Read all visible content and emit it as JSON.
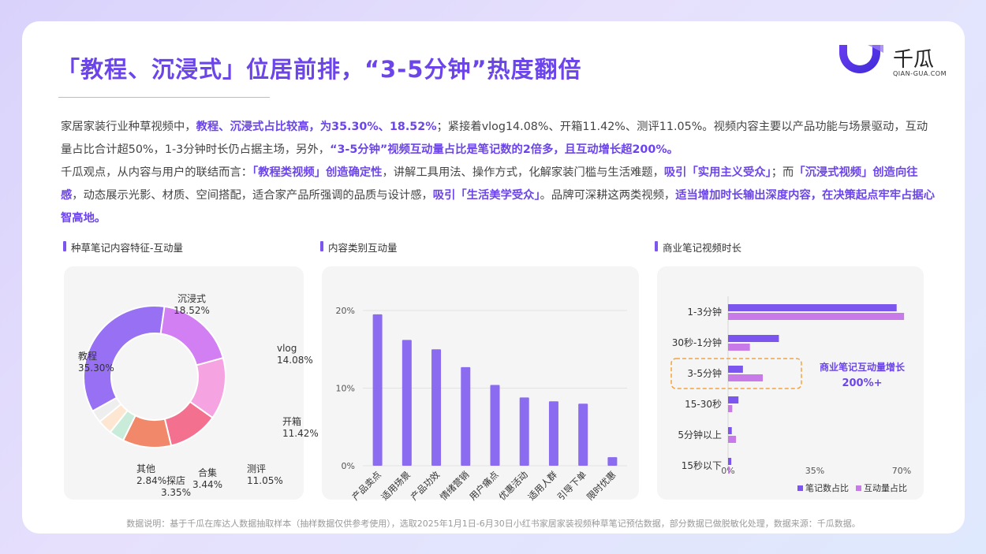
{
  "title": "「教程、沉浸式」位居前排，“3-5分钟”热度翻倍",
  "logo": {
    "name": "千瓜",
    "sub": "QIAN-GUA.COM"
  },
  "intro": {
    "p1": [
      {
        "t": "家居家装行业种草视频中，",
        "hl": false
      },
      {
        "t": "教程、沉浸式占比较高，为35.30%、18.52%",
        "hl": true
      },
      {
        "t": "；紧接着vlog14.08%、开箱11.42%、测评11.05%。视频内容主要以产品功能与场景驱动，互动量占比合计超50%，1-3分钟时长仍占据主场，另外，",
        "hl": false
      },
      {
        "t": "“3-5分钟”视频互动量占比是笔记数的2倍多，且互动增长超200%。",
        "hl": true
      }
    ],
    "p2": [
      {
        "t": "千瓜观点，从内容与用户的联结而言：",
        "hl": false
      },
      {
        "t": "「教程类视频」创造确定性",
        "hl": true
      },
      {
        "t": "，讲解工具用法、操作方式，化解家装门槛与生活难题，",
        "hl": false
      },
      {
        "t": "吸引「实用主义受众」",
        "hl": true
      },
      {
        "t": "；而",
        "hl": false
      },
      {
        "t": "「沉浸式视频」创造向往感",
        "hl": true
      },
      {
        "t": "，动态展示光影、材质、空间搭配，适合家产品所强调的品质与设计感，",
        "hl": false
      },
      {
        "t": "吸引「生活美学受众」",
        "hl": true
      },
      {
        "t": "。品牌可深耕这两类视频，",
        "hl": false
      },
      {
        "t": "适当增加时长输出深度内容，在决策起点牢牢占据心智高地。",
        "hl": true
      }
    ]
  },
  "sections": {
    "donut": "种草笔记内容特征-互动量",
    "bars": "内容类别互动量",
    "hbars": "商业笔记视频时长"
  },
  "footnote": "数据说明：基于千瓜在库达人数据抽取样本（抽样数据仅供参考使用），选取2025年1月1日-6月30日小红书家居家装视频种草笔记预估数据，部分数据已做脱敏化处理，数据来源：千瓜数据。",
  "colors": {
    "accent": "#6c45ea",
    "bar": "#8b6cf0",
    "hbar1": "#7c55ee",
    "hbar2": "#c77ae8",
    "highlight": "#f5a33c"
  },
  "chart_data": [
    {
      "type": "pie",
      "title": "种草笔记内容特征-互动量",
      "donut": true,
      "categories": [
        "教程",
        "沉浸式",
        "vlog",
        "开箱",
        "测评",
        "合集",
        "探店",
        "其他"
      ],
      "values": [
        35.3,
        18.52,
        14.08,
        11.42,
        11.05,
        3.44,
        3.35,
        2.84
      ],
      "labels": [
        "35.30%",
        "18.52%",
        "14.08%",
        "11.42%",
        "11.05%",
        "3.44%",
        "3.35%",
        "2.84%"
      ],
      "colors": [
        "#9770f3",
        "#d27ff3",
        "#f6a3e2",
        "#f3708e",
        "#f2886a",
        "#c8ecd9",
        "#fde7d3",
        "#eeeeee"
      ]
    },
    {
      "type": "bar",
      "title": "内容类别互动量",
      "categories": [
        "产品卖点",
        "适用场景",
        "产品功效",
        "情绪营销",
        "用户痛点",
        "优惠活动",
        "适用人群",
        "引导下单",
        "限时优惠"
      ],
      "values": [
        19.5,
        16.2,
        15.0,
        12.7,
        10.4,
        8.8,
        8.3,
        8.0,
        1.1
      ],
      "ylim": [
        0,
        20
      ],
      "yticks": [
        "0%",
        "10%",
        "20%"
      ]
    },
    {
      "type": "bar",
      "orientation": "horizontal",
      "title": "商业笔记视频时长",
      "categories": [
        "1-3分钟",
        "30秒-1分钟",
        "3-5分钟",
        "15-30秒",
        "5分钟以上",
        "15秒以下"
      ],
      "series": [
        {
          "name": "笔记数占比",
          "values": [
            68.0,
            20.5,
            6.0,
            4.2,
            1.5,
            1.3
          ]
        },
        {
          "name": "互动量占比",
          "values": [
            71.0,
            8.8,
            14.0,
            1.7,
            3.2,
            0.4
          ]
        }
      ],
      "xlim": [
        0,
        70
      ],
      "xticks": [
        "0%",
        "35%",
        "70%"
      ],
      "legend": "bottom-right",
      "annotation": {
        "line1": "商业笔记互动量增长",
        "line2": "200%+",
        "target": "3-5分钟"
      }
    }
  ]
}
